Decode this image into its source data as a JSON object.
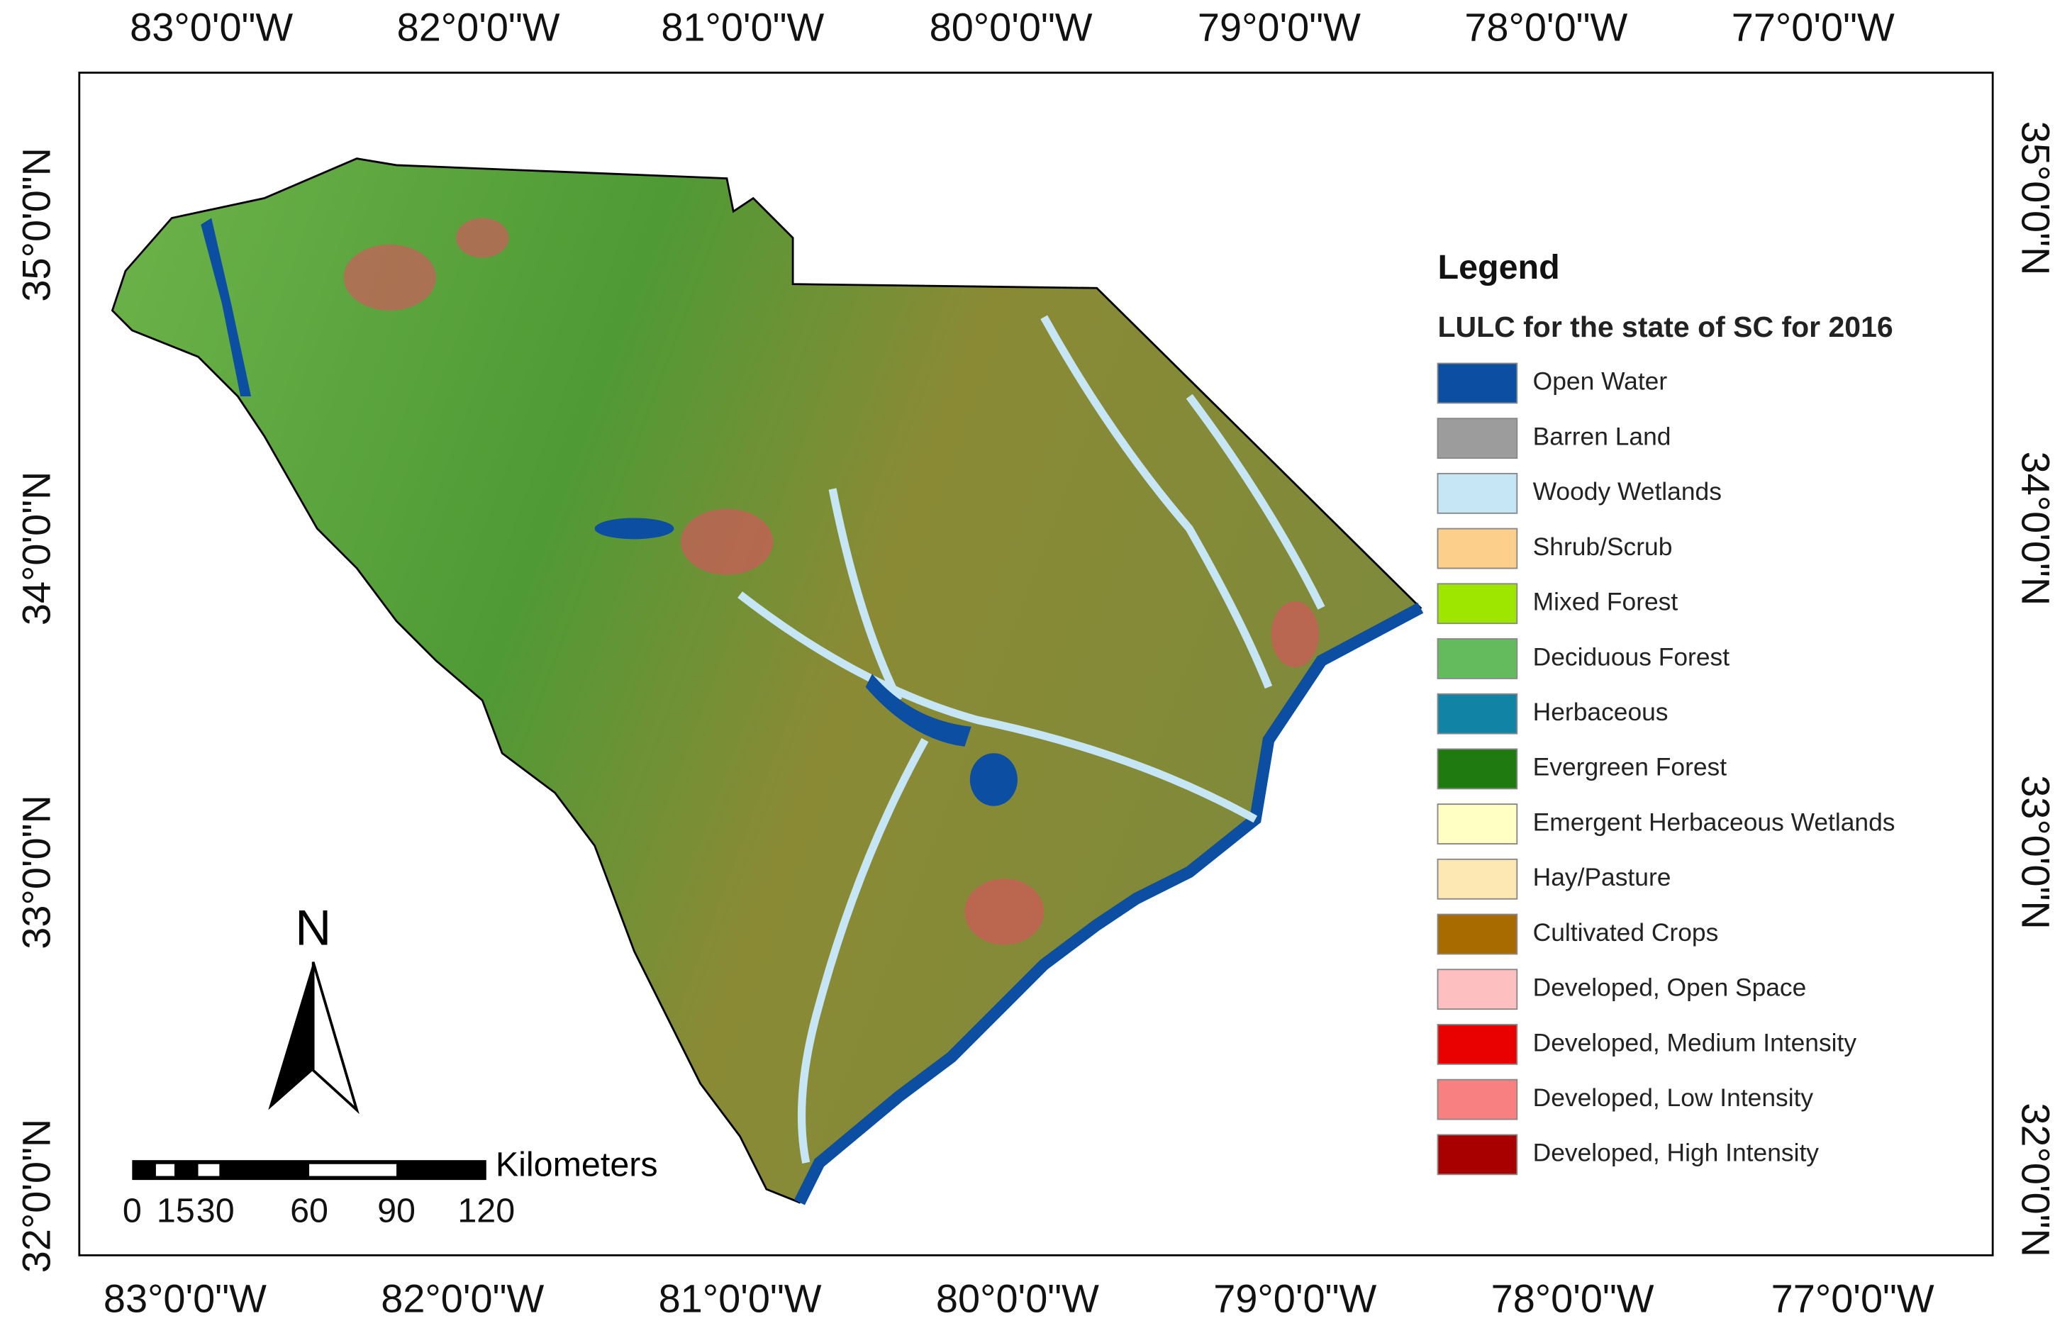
{
  "axes": {
    "top": [
      "83°0'0\"W",
      "82°0'0\"W",
      "81°0'0\"W",
      "80°0'0\"W",
      "79°0'0\"W",
      "78°0'0\"W",
      "77°0'0\"W"
    ],
    "bottom": [
      "83°0'0\"W",
      "82°0'0\"W",
      "81°0'0\"W",
      "80°0'0\"W",
      "79°0'0\"W",
      "78°0'0\"W",
      "77°0'0\"W"
    ],
    "left": [
      "35°0'0\"N",
      "34°0'0\"N",
      "33°0'0\"N",
      "32°0'0\"N"
    ],
    "right": [
      "35°0'0\"N",
      "34°0'0\"N",
      "33°0'0\"N",
      "32°0'0\"N"
    ]
  },
  "legend": {
    "title": "Legend",
    "subtitle": "LULC for the state of SC for 2016",
    "items": [
      {
        "label": "Open Water",
        "color": "#0b4ea2"
      },
      {
        "label": "Barren Land",
        "color": "#9c9c9c"
      },
      {
        "label": "Woody Wetlands",
        "color": "#c6e6f5"
      },
      {
        "label": "Shrub/Scrub",
        "color": "#fccf8a"
      },
      {
        "label": "Mixed Forest",
        "color": "#9ee600"
      },
      {
        "label": "Deciduous Forest",
        "color": "#63bb5e"
      },
      {
        "label": "Herbaceous",
        "color": "#1184a5"
      },
      {
        "label": "Evergreen Forest",
        "color": "#1f7a10"
      },
      {
        "label": "Emergent Herbaceous Wetlands",
        "color": "#ffffc4"
      },
      {
        "label": "Hay/Pasture",
        "color": "#fde8b3"
      },
      {
        "label": "Cultivated Crops",
        "color": "#a86b00"
      },
      {
        "label": "Developed, Open Space",
        "color": "#fdbfbf"
      },
      {
        "label": "Developed, Medium Intensity",
        "color": "#e90000"
      },
      {
        "label": "Developed, Low Intensity",
        "color": "#f98080"
      },
      {
        "label": "Developed, High Intensity",
        "color": "#a80000"
      }
    ]
  },
  "north_arrow": "N",
  "scale_bar": {
    "ticks": [
      "0",
      "15",
      "30",
      "60",
      "90",
      "120"
    ],
    "unit": "Kilometers"
  }
}
